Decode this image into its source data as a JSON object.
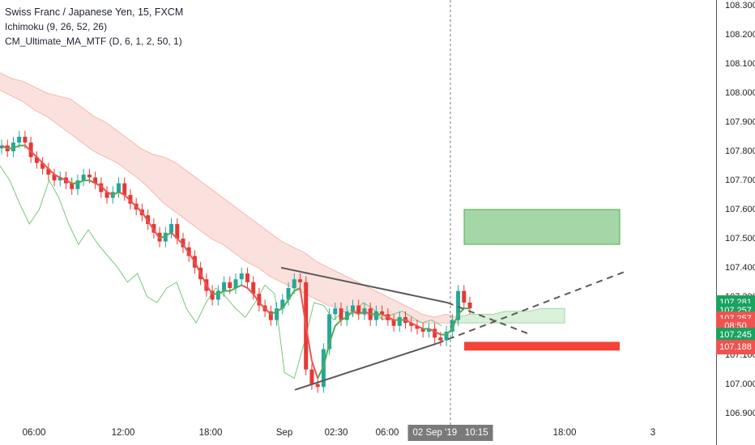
{
  "legend": {
    "symbol": "Swiss Franc / Japanese Yen, 15, FXCM",
    "ichimoku": "Ichimoku (9, 26, 52, 26)",
    "ma": "CM_Ultimate_MA_MTF (D, 6, 1, 2, 50, 1)"
  },
  "colors": {
    "up": "#26a69a",
    "down": "#ef5350",
    "candle_up": "#26a69a",
    "candle_down": "#e53935",
    "ma_line": "#ef5350",
    "ma_line_up": "#4caf50",
    "lagging_span": "#7cc47c",
    "cloud_bear": "#fadcd8",
    "cloud_bull": "#d9f1d9",
    "box_green": "#a5d6a7",
    "box_red": "#f44336",
    "trendline": "#5b5b5b"
  },
  "price_badges": [
    {
      "label": "107.281",
      "value": 107.281,
      "color": "#1aa260"
    },
    {
      "label": "107.257",
      "value": 107.251,
      "color": "#1aa260"
    },
    {
      "label": "107.257",
      "value": 107.223,
      "color": "#ef5350"
    },
    {
      "label": "08:50",
      "value": 107.2,
      "color": "#ef5350"
    },
    {
      "label": "107.245",
      "value": 107.168,
      "color": "#1aa260"
    },
    {
      "label": "107.188",
      "value": 107.128,
      "color": "#ef5350"
    }
  ],
  "crosshair": {
    "date_label": "02 Sep '19",
    "time_label": "10:15"
  },
  "chart_data": {
    "type": "candlestick",
    "title": "Swiss Franc / Japanese Yen, 15, FXCM",
    "ylim": [
      106.86,
      108.32
    ],
    "y_ticks": [
      "106.900",
      "107.000",
      "107.100",
      "107.200",
      "107.300",
      "107.400",
      "107.500",
      "107.600",
      "107.700",
      "107.800",
      "107.900",
      "108.000",
      "108.100",
      "108.200",
      "108.300"
    ],
    "x_ticks": [
      "06:00",
      "12:00",
      "18:00",
      "Sep",
      "02:30",
      "06:00",
      "18:00",
      "3"
    ],
    "price_series": [
      107.82,
      107.8,
      107.83,
      107.85,
      107.83,
      107.78,
      107.76,
      107.74,
      107.72,
      107.7,
      107.71,
      107.69,
      107.67,
      107.7,
      107.72,
      107.71,
      107.69,
      107.66,
      107.64,
      107.66,
      107.69,
      107.65,
      107.62,
      107.6,
      107.58,
      107.55,
      107.52,
      107.49,
      107.52,
      107.55,
      107.5,
      107.47,
      107.44,
      107.4,
      107.36,
      107.32,
      107.29,
      107.32,
      107.35,
      107.33,
      107.36,
      107.38,
      107.35,
      107.31,
      107.27,
      107.25,
      107.22,
      107.26,
      107.29,
      107.33,
      107.36,
      107.35,
      107.05,
      107.0,
      106.99,
      107.12,
      107.24,
      107.26,
      107.22,
      107.25,
      107.27,
      107.24,
      107.26,
      107.22,
      107.25,
      107.24,
      107.22,
      107.2,
      107.23,
      107.21,
      107.2,
      107.19,
      107.18,
      107.19,
      107.16,
      107.15,
      107.18,
      107.22,
      107.32,
      107.28,
      107.26
    ],
    "ma_series": [
      107.82,
      107.81,
      107.81,
      107.82,
      107.82,
      107.8,
      107.78,
      107.76,
      107.74,
      107.72,
      107.71,
      107.7,
      107.69,
      107.69,
      107.7,
      107.7,
      107.69,
      107.68,
      107.66,
      107.65,
      107.66,
      107.65,
      107.63,
      107.61,
      107.59,
      107.56,
      107.53,
      107.5,
      107.51,
      107.52,
      107.5,
      107.48,
      107.45,
      107.42,
      107.38,
      107.34,
      107.31,
      107.31,
      107.32,
      107.32,
      107.33,
      107.34,
      107.33,
      107.31,
      107.28,
      107.26,
      107.24,
      107.25,
      107.26,
      107.29,
      107.32,
      107.33,
      107.2,
      107.08,
      107.02,
      107.06,
      107.14,
      107.2,
      107.22,
      107.23,
      107.25,
      107.24,
      107.25,
      107.24,
      107.24,
      107.24,
      107.23,
      107.22,
      107.22,
      107.22,
      107.21,
      107.2,
      107.19,
      107.19,
      107.18,
      107.17,
      107.17,
      107.19,
      107.24,
      107.26,
      107.26
    ],
    "lagging_span": [
      107.75,
      107.7,
      107.62,
      107.55,
      107.6,
      107.7,
      107.64,
      107.55,
      107.48,
      107.53,
      107.48,
      107.44,
      107.4,
      107.35,
      107.38,
      107.3,
      107.28,
      107.33,
      107.35,
      107.26,
      107.21,
      107.28,
      107.33,
      107.3,
      107.26,
      107.23,
      107.28,
      107.34,
      107.31,
      107.04,
      107.02,
      107.14,
      107.28,
      107.27,
      107.22,
      107.25,
      107.24,
      107.28,
      107.26,
      107.22,
      107.24,
      107.25,
      107.23,
      107.21,
      107.22,
      107.2
    ],
    "cloud_upper": [
      108.07,
      108.05,
      108.04,
      108.02,
      108.0,
      107.99,
      107.98,
      107.95,
      107.92,
      107.9,
      107.87,
      107.84,
      107.81,
      107.79,
      107.78,
      107.76,
      107.73,
      107.7,
      107.67,
      107.64,
      107.61,
      107.58,
      107.55,
      107.52,
      107.49,
      107.47,
      107.45,
      107.42,
      107.4,
      107.38,
      107.36,
      107.34,
      107.32,
      107.3,
      107.28,
      107.26,
      107.24,
      107.23,
      107.24,
      107.23
    ],
    "cloud_lower": [
      108.01,
      107.99,
      107.97,
      107.94,
      107.92,
      107.89,
      107.86,
      107.83,
      107.8,
      107.78,
      107.76,
      107.73,
      107.7,
      107.66,
      107.62,
      107.59,
      107.56,
      107.53,
      107.5,
      107.48,
      107.45,
      107.42,
      107.4,
      107.37,
      107.35,
      107.33,
      107.31,
      107.29,
      107.27,
      107.26,
      107.25,
      107.24,
      107.23,
      107.22,
      107.22,
      107.22,
      107.21,
      107.21,
      107.21,
      107.21
    ],
    "future_cloud_upper": [
      107.23,
      107.24,
      107.24,
      107.24,
      107.25,
      107.25,
      107.25,
      107.26,
      107.26,
      107.26
    ],
    "future_cloud_lower": [
      107.21,
      107.21,
      107.21,
      107.21,
      107.21,
      107.21,
      107.21,
      107.21,
      107.21,
      107.21
    ],
    "target_zone_buy": {
      "from": 107.48,
      "to": 107.6
    },
    "target_zone_sell": {
      "from": 107.115,
      "to": 107.145
    },
    "triangle": {
      "apex_high": 107.4,
      "low": 106.98,
      "breakout": 107.24
    }
  }
}
